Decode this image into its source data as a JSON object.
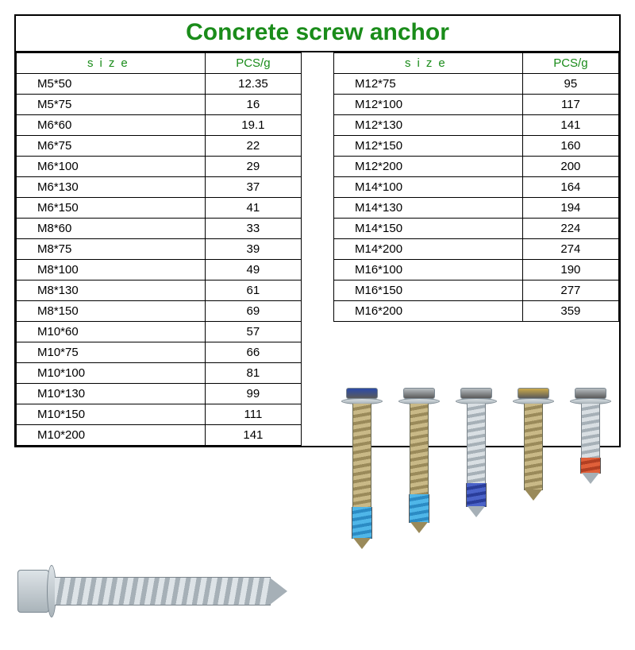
{
  "title": "Concrete screw anchor",
  "headers": {
    "size": "size",
    "pcs": "PCS/g"
  },
  "colors": {
    "title": "#1a8c1a",
    "header_text": "#1a8c1a",
    "border": "#000000",
    "background": "#ffffff"
  },
  "left_table": [
    {
      "size": "M5*50",
      "pcs": "12.35"
    },
    {
      "size": "M5*75",
      "pcs": "16"
    },
    {
      "size": "M6*60",
      "pcs": "19.1"
    },
    {
      "size": "M6*75",
      "pcs": "22"
    },
    {
      "size": "M6*100",
      "pcs": "29"
    },
    {
      "size": "M6*130",
      "pcs": "37"
    },
    {
      "size": "M6*150",
      "pcs": "41"
    },
    {
      "size": "M8*60",
      "pcs": "33"
    },
    {
      "size": "M8*75",
      "pcs": "39"
    },
    {
      "size": "M8*100",
      "pcs": "49"
    },
    {
      "size": "M8*130",
      "pcs": "61"
    },
    {
      "size": "M8*150",
      "pcs": "69"
    },
    {
      "size": "M10*60",
      "pcs": "57"
    },
    {
      "size": "M10*75",
      "pcs": "66"
    },
    {
      "size": "M10*100",
      "pcs": "81"
    },
    {
      "size": "M10*130",
      "pcs": "99"
    },
    {
      "size": "M10*150",
      "pcs": "111"
    },
    {
      "size": "M10*200",
      "pcs": "141"
    }
  ],
  "right_table": [
    {
      "size": "M12*75",
      "pcs": "95"
    },
    {
      "size": "M12*100",
      "pcs": "117"
    },
    {
      "size": "M12*130",
      "pcs": "141"
    },
    {
      "size": "M12*150",
      "pcs": "160"
    },
    {
      "size": "M12*200",
      "pcs": "200"
    },
    {
      "size": "M14*100",
      "pcs": "164"
    },
    {
      "size": "M14*130",
      "pcs": "194"
    },
    {
      "size": "M14*150",
      "pcs": "224"
    },
    {
      "size": "M14*200",
      "pcs": "274"
    },
    {
      "size": "M16*100",
      "pcs": "190"
    },
    {
      "size": "M16*150",
      "pcs": "277"
    },
    {
      "size": "M16*200",
      "pcs": "359"
    }
  ],
  "upright_screws": [
    {
      "head_color": "#2b4aa8",
      "shaft": "brass",
      "shaft_h": 170,
      "band_h": 40,
      "band_a": "#4fb6e8",
      "band_b": "#2b8bc4",
      "tip": "brass"
    },
    {
      "head_color": "#b8bec2",
      "shaft": "brass",
      "shaft_h": 150,
      "band_h": 36,
      "band_a": "#4fb6e8",
      "band_b": "#2b8bc4",
      "tip": "brass"
    },
    {
      "head_color": "#b8bec2",
      "shaft": "silver",
      "shaft_h": 130,
      "band_h": 30,
      "band_a": "#4a62c8",
      "band_b": "#2a3d9a",
      "tip": "silver"
    },
    {
      "head_color": "#caa94a",
      "shaft": "brass",
      "shaft_h": 108,
      "band_h": 0,
      "band_a": "#000",
      "band_b": "#000",
      "tip": "brass"
    },
    {
      "head_color": "#b8bec2",
      "shaft": "silver",
      "shaft_h": 88,
      "band_h": 20,
      "band_a": "#e0603a",
      "band_b": "#b23f22",
      "tip": "silver"
    }
  ],
  "horizontal_screw": {
    "finish": "silver"
  }
}
